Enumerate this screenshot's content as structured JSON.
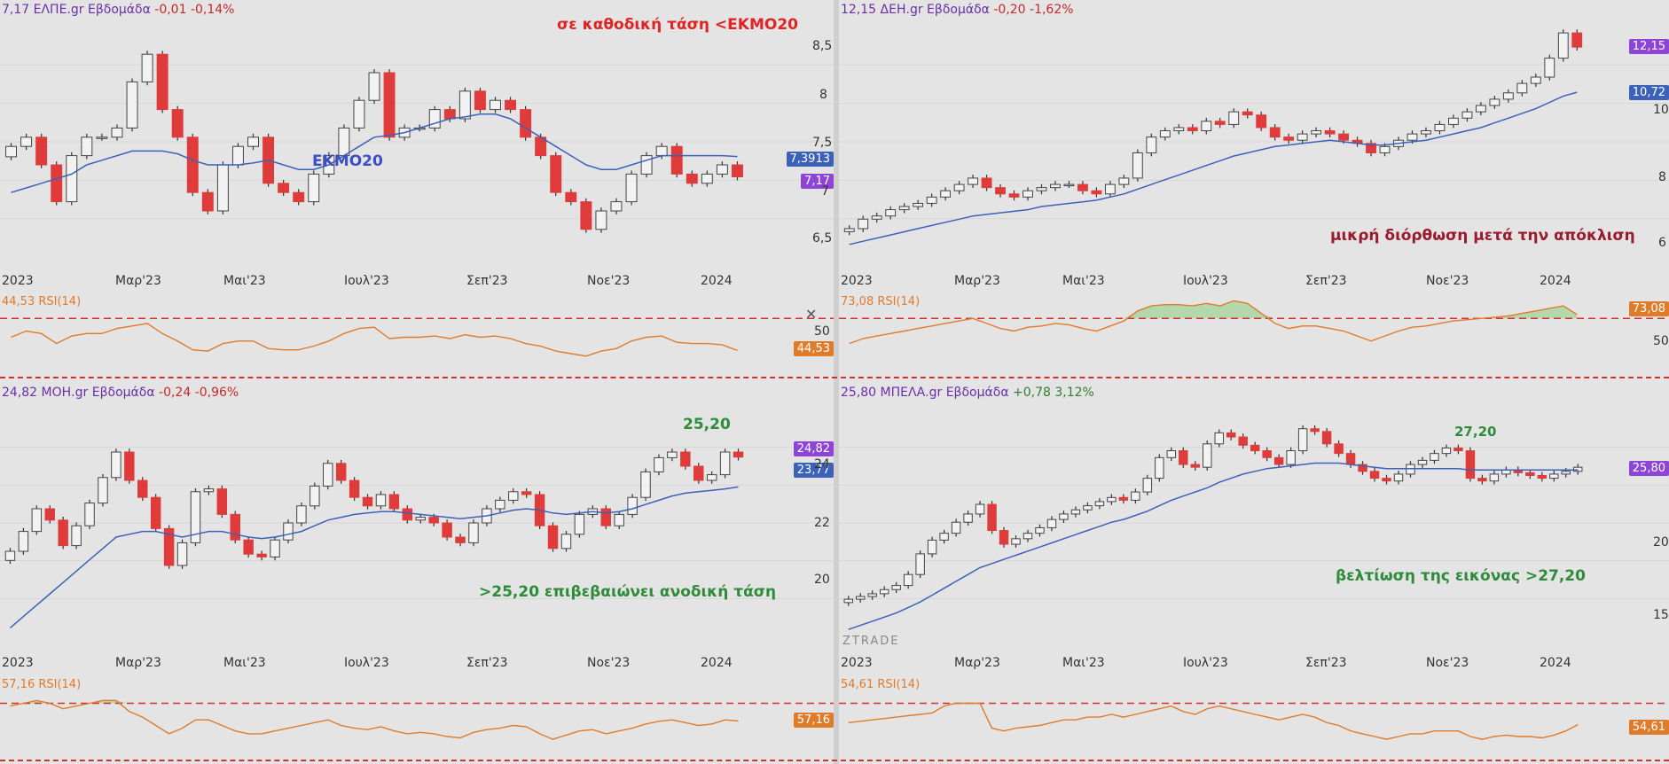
{
  "panels": [
    {
      "id": "elpe",
      "header": {
        "price": "7,17",
        "symbol": "ΕΛΠΕ.gr",
        "period": "Εβδομάδα",
        "change": "-0,01 -0,14%",
        "change_sign": "neg"
      },
      "note_top": "σε καθοδική τάση <ΕΚΜΟ20",
      "note_ma": "ΕΚΜΟ20",
      "tags": [
        {
          "text": "7,3913",
          "color": "#3b62b8"
        },
        {
          "text": "7,17",
          "color": "#8e44d6"
        }
      ],
      "y_ticks": [
        "8,5",
        "8",
        "7,5",
        "7",
        "6,5"
      ],
      "x_ticks": [
        "2023",
        "Μαρ'23",
        "Μαι'23",
        "Ιουλ'23",
        "Σεπ'23",
        "Νοε'23",
        "2024"
      ],
      "rsi": {
        "label": "44,53 RSI(14)",
        "value": "44,53",
        "ticks": [
          "50"
        ]
      }
    },
    {
      "id": "deh",
      "header": {
        "price": "12,15",
        "symbol": "ΔΕΗ.gr",
        "period": "Εβδομάδα",
        "change": "-0,20 -1,62%",
        "change_sign": "neg"
      },
      "note_bottom": "μικρή διόρθωση μετά την απόκλιση",
      "tags": [
        {
          "text": "12,15",
          "color": "#8e44d6"
        },
        {
          "text": "10,72",
          "color": "#3b62b8"
        }
      ],
      "y_ticks": [
        "10",
        "8",
        "6"
      ],
      "x_ticks": [
        "2023",
        "Μαρ'23",
        "Μαι'23",
        "Ιουλ'23",
        "Σεπ'23",
        "Νοε'23",
        "2024"
      ],
      "rsi": {
        "label": "73,08 RSI(14)",
        "value": "73,08",
        "ticks": [
          "50"
        ]
      }
    },
    {
      "id": "moh",
      "header": {
        "price": "24,82",
        "symbol": "ΜΟΗ.gr",
        "period": "Εβδομάδα",
        "change": "-0,24 -0,96%",
        "change_sign": "neg"
      },
      "note_level": "25,20",
      "note_bottom": ">25,20 επιβεβαιώνει ανοδική τάση",
      "tags": [
        {
          "text": "24,82",
          "color": "#8e44d6"
        },
        {
          "text": "23,77",
          "color": "#3b62b8"
        }
      ],
      "y_ticks": [
        "24",
        "22",
        "20"
      ],
      "x_ticks": [
        "2023",
        "Μαρ'23",
        "Μαι'23",
        "Ιουλ'23",
        "Σεπ'23",
        "Νοε'23",
        "2024"
      ],
      "rsi": {
        "label": "57,16 RSI(14)",
        "value": "57,16",
        "ticks": []
      }
    },
    {
      "id": "mpela",
      "header": {
        "price": "25,80",
        "symbol": "ΜΠΕΛΑ.gr",
        "period": "Εβδομάδα",
        "change": "+0,78 3,12%",
        "change_sign": "pos"
      },
      "note_level": "27,20",
      "note_bottom": "βελτίωση της εικόνας >27,20",
      "tags": [
        {
          "text": "25,80",
          "color": "#8e44d6"
        }
      ],
      "y_ticks": [
        "20",
        "15"
      ],
      "x_ticks": [
        "2023",
        "Μαρ'23",
        "Μαι'23",
        "Ιουλ'23",
        "Σεπ'23",
        "Νοε'23",
        "2024"
      ],
      "rsi": {
        "label": "54,61 RSI(14)",
        "value": "54,61",
        "ticks": []
      },
      "logo": "ZTRADE"
    }
  ],
  "colors": {
    "up": "#f2f2f2",
    "down": "#e03b3b",
    "ma": "#3b62b8",
    "rsi": "#e07b2a",
    "rsi_fill": "#a9d6a2",
    "level": "#d32f2f"
  },
  "chart_data": [
    {
      "type": "candlestick",
      "title": "ΕΛΠΕ.gr Εβδομάδα",
      "ylim": [
        6.3,
        8.8
      ],
      "close": [
        7.5,
        7.6,
        7.3,
        6.9,
        7.4,
        7.6,
        7.6,
        7.7,
        8.2,
        8.5,
        7.9,
        7.6,
        7.0,
        6.8,
        7.3,
        7.5,
        7.6,
        7.1,
        7.0,
        6.9,
        7.2,
        7.4,
        7.7,
        8.0,
        8.3,
        7.6,
        7.7,
        7.7,
        7.9,
        7.8,
        8.1,
        7.9,
        8.0,
        7.9,
        7.6,
        7.4,
        7.0,
        6.9,
        6.6,
        6.8,
        6.9,
        7.2,
        7.4,
        7.5,
        7.2,
        7.1,
        7.2,
        7.3,
        7.17
      ],
      "ma": [
        7.0,
        7.05,
        7.1,
        7.15,
        7.2,
        7.3,
        7.35,
        7.4,
        7.45,
        7.45,
        7.45,
        7.42,
        7.35,
        7.3,
        7.3,
        7.3,
        7.32,
        7.35,
        7.3,
        7.25,
        7.25,
        7.3,
        7.4,
        7.5,
        7.6,
        7.62,
        7.65,
        7.7,
        7.75,
        7.8,
        7.82,
        7.85,
        7.85,
        7.8,
        7.7,
        7.6,
        7.5,
        7.4,
        7.3,
        7.25,
        7.25,
        7.3,
        7.35,
        7.4,
        7.4,
        7.4,
        7.4,
        7.4,
        7.39
      ],
      "rsi": [
        55,
        60,
        58,
        50,
        56,
        58,
        58,
        62,
        64,
        66,
        58,
        52,
        45,
        44,
        50,
        52,
        52,
        46,
        45,
        45,
        48,
        52,
        58,
        62,
        63,
        54,
        55,
        55,
        56,
        54,
        57,
        55,
        56,
        54,
        50,
        48,
        44,
        42,
        40,
        44,
        46,
        52,
        55,
        56,
        51,
        50,
        50,
        49,
        44.53
      ],
      "rsi_levels": [
        70,
        30
      ]
    },
    {
      "type": "candlestick",
      "title": "ΔΕΗ.gr Εβδομάδα",
      "ylim": [
        5.5,
        12.8
      ],
      "close": [
        6.4,
        6.7,
        6.8,
        7.0,
        7.1,
        7.2,
        7.4,
        7.6,
        7.8,
        8.0,
        7.7,
        7.5,
        7.4,
        7.6,
        7.7,
        7.8,
        7.8,
        7.6,
        7.5,
        7.8,
        8.0,
        8.8,
        9.3,
        9.5,
        9.6,
        9.5,
        9.8,
        9.7,
        10.1,
        10.0,
        9.6,
        9.3,
        9.2,
        9.4,
        9.5,
        9.4,
        9.2,
        9.1,
        8.8,
        9.0,
        9.2,
        9.4,
        9.5,
        9.7,
        9.9,
        10.1,
        10.3,
        10.5,
        10.7,
        11.0,
        11.2,
        11.8,
        12.6,
        12.15
      ],
      "ma": [
        5.9,
        6.0,
        6.1,
        6.2,
        6.3,
        6.4,
        6.5,
        6.6,
        6.7,
        6.8,
        6.85,
        6.9,
        6.95,
        7.0,
        7.1,
        7.15,
        7.2,
        7.25,
        7.3,
        7.4,
        7.5,
        7.65,
        7.8,
        7.95,
        8.1,
        8.25,
        8.4,
        8.55,
        8.7,
        8.8,
        8.9,
        9.0,
        9.05,
        9.1,
        9.15,
        9.2,
        9.15,
        9.1,
        9.05,
        9.05,
        9.1,
        9.15,
        9.2,
        9.3,
        9.4,
        9.5,
        9.6,
        9.75,
        9.9,
        10.05,
        10.2,
        10.4,
        10.6,
        10.72
      ],
      "rsi": [
        50,
        54,
        56,
        58,
        60,
        62,
        64,
        66,
        68,
        70,
        66,
        62,
        60,
        63,
        64,
        66,
        65,
        62,
        60,
        64,
        68,
        76,
        80,
        81,
        81,
        80,
        82,
        80,
        84,
        82,
        74,
        66,
        62,
        64,
        64,
        62,
        60,
        56,
        52,
        56,
        60,
        63,
        64,
        66,
        68,
        69,
        70,
        71,
        72,
        74,
        76,
        78,
        80,
        73.08
      ],
      "rsi_levels": [
        70,
        30
      ]
    },
    {
      "type": "candlestick",
      "title": "ΜΟΗ.gr Εβδομάδα",
      "ylim": [
        18.5,
        26.5
      ],
      "close": [
        21.5,
        22.2,
        23.0,
        22.6,
        21.7,
        22.4,
        23.2,
        24.1,
        25.0,
        24.0,
        23.4,
        22.3,
        21.0,
        21.8,
        23.6,
        23.7,
        22.8,
        21.9,
        21.4,
        21.3,
        21.9,
        22.5,
        23.1,
        23.8,
        24.6,
        24.0,
        23.4,
        23.1,
        23.5,
        23.0,
        22.6,
        22.7,
        22.5,
        22.0,
        21.8,
        22.5,
        23.0,
        23.3,
        23.6,
        23.5,
        22.4,
        21.6,
        22.1,
        22.8,
        23.0,
        22.4,
        22.8,
        23.4,
        24.3,
        24.8,
        25.0,
        24.5,
        24.0,
        24.2,
        25.0,
        24.82
      ],
      "ma": [
        18.8,
        19.2,
        19.6,
        20.0,
        20.4,
        20.8,
        21.2,
        21.6,
        22.0,
        22.1,
        22.2,
        22.2,
        22.1,
        22.0,
        22.1,
        22.2,
        22.2,
        22.1,
        22.0,
        21.95,
        22.0,
        22.1,
        22.2,
        22.4,
        22.6,
        22.7,
        22.8,
        22.85,
        22.9,
        22.9,
        22.85,
        22.8,
        22.75,
        22.7,
        22.65,
        22.7,
        22.75,
        22.85,
        22.95,
        23.0,
        22.95,
        22.85,
        22.8,
        22.85,
        22.9,
        22.85,
        22.9,
        23.0,
        23.15,
        23.3,
        23.45,
        23.55,
        23.6,
        23.65,
        23.7,
        23.77
      ],
      "rsi": [
        68,
        70,
        72,
        70,
        66,
        68,
        70,
        72,
        72,
        64,
        60,
        54,
        48,
        52,
        58,
        58,
        54,
        50,
        48,
        48,
        50,
        52,
        54,
        56,
        58,
        54,
        52,
        51,
        53,
        50,
        48,
        49,
        48,
        46,
        45,
        49,
        51,
        52,
        54,
        53,
        48,
        44,
        47,
        50,
        51,
        48,
        50,
        52,
        55,
        57,
        58,
        56,
        54,
        55,
        58,
        57.16
      ],
      "rsi_levels": [
        70,
        30
      ]
    },
    {
      "type": "candlestick",
      "title": "ΜΠΕΛΑ.gr Εβδομάδα",
      "ylim": [
        13.5,
        30.0
      ],
      "close": [
        16.2,
        16.4,
        16.6,
        16.9,
        17.2,
        18.0,
        19.5,
        20.5,
        21.0,
        21.8,
        22.4,
        23.1,
        21.2,
        20.2,
        20.6,
        21.0,
        21.4,
        22.0,
        22.4,
        22.7,
        23.0,
        23.3,
        23.6,
        23.4,
        24.0,
        25.0,
        26.5,
        27.0,
        26.0,
        25.8,
        27.5,
        28.3,
        28.0,
        27.4,
        27.0,
        26.5,
        26.0,
        27.0,
        28.6,
        28.4,
        27.5,
        26.8,
        26.0,
        25.5,
        25.0,
        24.8,
        25.3,
        26.0,
        26.3,
        26.8,
        27.2,
        27.0,
        25.0,
        24.8,
        25.3,
        25.6,
        25.4,
        25.2,
        25.0,
        25.3,
        25.5,
        25.8
      ],
      "ma": [
        14.0,
        14.3,
        14.6,
        14.9,
        15.2,
        15.6,
        16.0,
        16.5,
        17.0,
        17.5,
        18.0,
        18.5,
        18.8,
        19.1,
        19.4,
        19.7,
        20.0,
        20.3,
        20.6,
        20.9,
        21.2,
        21.5,
        21.8,
        22.0,
        22.3,
        22.6,
        23.0,
        23.4,
        23.7,
        24.0,
        24.3,
        24.7,
        25.0,
        25.3,
        25.5,
        25.7,
        25.8,
        25.9,
        26.0,
        26.1,
        26.1,
        26.1,
        26.0,
        25.9,
        25.8,
        25.7,
        25.7,
        25.7,
        25.7,
        25.7,
        25.7,
        25.7,
        25.6,
        25.6,
        25.6,
        25.6,
        25.6,
        25.6,
        25.6,
        25.6,
        25.6,
        25.6
      ],
      "rsi": [
        56,
        57,
        58,
        59,
        60,
        61,
        62,
        63,
        68,
        70,
        70,
        70,
        52,
        50,
        52,
        53,
        54,
        56,
        58,
        58,
        60,
        60,
        62,
        60,
        62,
        64,
        66,
        68,
        64,
        62,
        66,
        68,
        66,
        64,
        62,
        60,
        58,
        60,
        62,
        60,
        56,
        54,
        50,
        48,
        46,
        44,
        46,
        48,
        48,
        50,
        50,
        50,
        46,
        44,
        46,
        47,
        46,
        46,
        45,
        47,
        50,
        54.61
      ],
      "rsi_levels": [
        70,
        30
      ]
    }
  ]
}
